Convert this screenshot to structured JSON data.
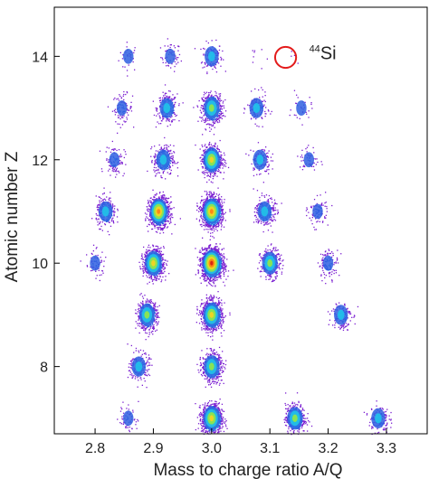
{
  "chart_data": {
    "type": "scatter",
    "title": "",
    "xlabel": "Mass to charge ratio A/Q",
    "ylabel": "Atomic number Z",
    "xlim": [
      2.73,
      3.37
    ],
    "ylim": [
      6.7,
      14.95
    ],
    "x_ticks": [
      2.8,
      2.9,
      3.0,
      3.1,
      3.2,
      3.3
    ],
    "x_tick_labels": [
      "2.8",
      "2.9",
      "3.0",
      "3.1",
      "3.2",
      "3.3"
    ],
    "y_ticks": [
      8,
      10,
      12,
      14
    ],
    "y_tick_labels": [
      "8",
      "10",
      "12",
      "14"
    ],
    "grid": false,
    "colormap": [
      "#7b1fd1",
      "#2f5fe0",
      "#1ec8ea",
      "#9bea3c",
      "#ffd21e",
      "#ff7a12",
      "#d21414"
    ],
    "annotation": {
      "mass_number": "44",
      "element": "Si",
      "circle_center": [
        3.127,
        13.98
      ],
      "circle_radius_axis_units": 0.018,
      "circle_color": "#e31b1b"
    },
    "clusters": [
      {
        "z": 14,
        "aq": 2.857,
        "counts": 30
      },
      {
        "z": 14,
        "aq": 2.929,
        "counts": 60
      },
      {
        "z": 14,
        "aq": 3.0,
        "counts": 130
      },
      {
        "z": 14,
        "aq": 3.071,
        "counts": 8
      },
      {
        "z": 14,
        "aq": 3.143,
        "counts": 5
      },
      {
        "z": 13,
        "aq": 2.846,
        "counts": 90
      },
      {
        "z": 13,
        "aq": 2.923,
        "counts": 280
      },
      {
        "z": 13,
        "aq": 3.0,
        "counts": 600
      },
      {
        "z": 13,
        "aq": 3.077,
        "counts": 150
      },
      {
        "z": 13,
        "aq": 3.154,
        "counts": 30
      },
      {
        "z": 12,
        "aq": 2.833,
        "counts": 100
      },
      {
        "z": 12,
        "aq": 2.917,
        "counts": 320
      },
      {
        "z": 12,
        "aq": 3.0,
        "counts": 700
      },
      {
        "z": 12,
        "aq": 3.083,
        "counts": 120
      },
      {
        "z": 12,
        "aq": 3.167,
        "counts": 50
      },
      {
        "z": 11,
        "aq": 2.818,
        "counts": 260
      },
      {
        "z": 11,
        "aq": 2.909,
        "counts": 1100
      },
      {
        "z": 11,
        "aq": 3.0,
        "counts": 1400
      },
      {
        "z": 11,
        "aq": 3.091,
        "counts": 280
      },
      {
        "z": 11,
        "aq": 3.182,
        "counts": 90
      },
      {
        "z": 10,
        "aq": 2.8,
        "counts": 60
      },
      {
        "z": 10,
        "aq": 2.9,
        "counts": 850
      },
      {
        "z": 10,
        "aq": 3.0,
        "counts": 1900
      },
      {
        "z": 10,
        "aq": 3.1,
        "counts": 330
      },
      {
        "z": 10,
        "aq": 3.2,
        "counts": 110
      },
      {
        "z": 9,
        "aq": 2.889,
        "counts": 550
      },
      {
        "z": 9,
        "aq": 3.0,
        "counts": 1000
      },
      {
        "z": 9,
        "aq": 3.222,
        "counts": 140
      },
      {
        "z": 8,
        "aq": 2.875,
        "counts": 200
      },
      {
        "z": 8,
        "aq": 3.0,
        "counts": 550
      },
      {
        "z": 7,
        "aq": 2.857,
        "counts": 60
      },
      {
        "z": 7,
        "aq": 3.0,
        "counts": 1000
      },
      {
        "z": 7,
        "aq": 3.143,
        "counts": 420
      },
      {
        "z": 7,
        "aq": 3.286,
        "counts": 140
      }
    ]
  }
}
